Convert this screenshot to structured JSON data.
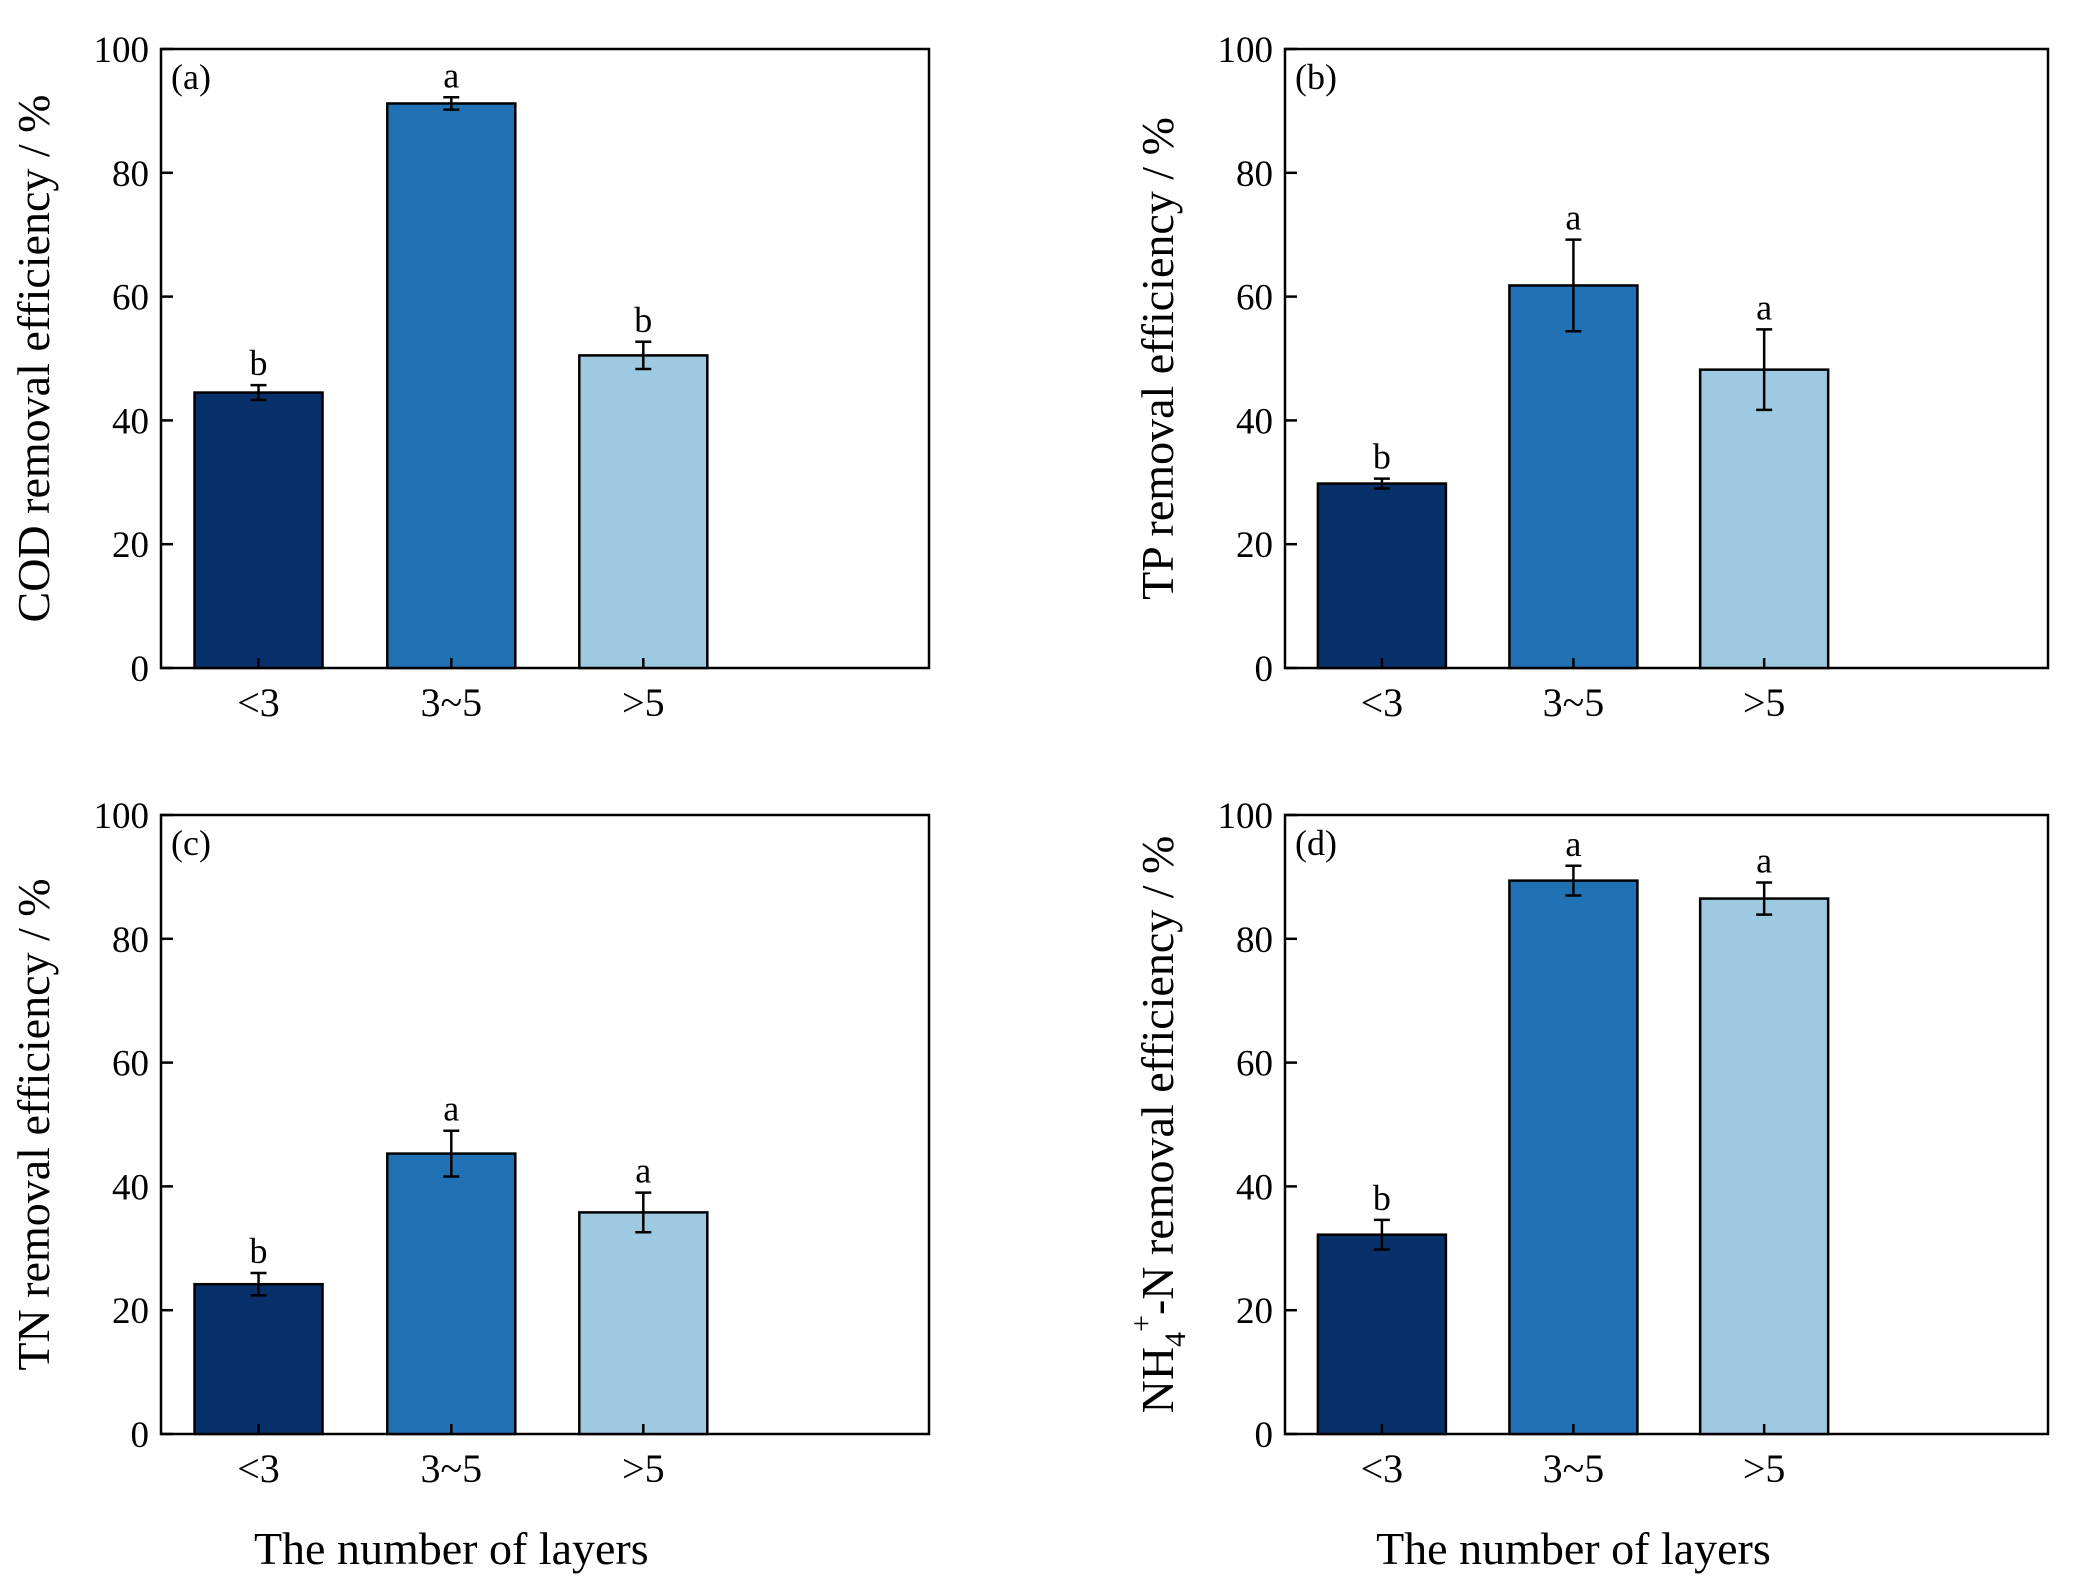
{
  "chart_data": [
    {
      "type": "bar",
      "panel_label": "(a)",
      "categories": [
        "<3",
        "3~5",
        ">5"
      ],
      "values": [
        44.5,
        91.2,
        50.5
      ],
      "errors": [
        1.2,
        1.0,
        2.2
      ],
      "significance": [
        "b",
        "a",
        "b"
      ],
      "ylabel": "COD removal efficiency / %",
      "xlabel": "",
      "ylim": [
        0,
        100
      ],
      "yticks": [
        "0",
        "20",
        "40",
        "60",
        "80",
        "100"
      ],
      "colors": [
        "#08306b",
        "#2171b5",
        "#9ecae1"
      ]
    },
    {
      "type": "bar",
      "panel_label": "(b)",
      "categories": [
        "<3",
        "3~5",
        ">5"
      ],
      "values": [
        29.8,
        61.8,
        48.2
      ],
      "errors": [
        0.8,
        7.4,
        6.5
      ],
      "significance": [
        "b",
        "a",
        "a"
      ],
      "ylabel": "TP removal efficiency / %",
      "xlabel": "",
      "ylim": [
        0,
        100
      ],
      "yticks": [
        "0",
        "20",
        "40",
        "60",
        "80",
        "100"
      ],
      "colors": [
        "#08306b",
        "#2171b5",
        "#9ecae1"
      ]
    },
    {
      "type": "bar",
      "panel_label": "(c)",
      "categories": [
        "<3",
        "3~5",
        ">5"
      ],
      "values": [
        24.2,
        45.3,
        35.8
      ],
      "errors": [
        1.8,
        3.7,
        3.2
      ],
      "significance": [
        "b",
        "a",
        "a"
      ],
      "ylabel": "TN removal efficiency / %",
      "xlabel": "The number of layers",
      "ylim": [
        0,
        100
      ],
      "yticks": [
        "0",
        "20",
        "40",
        "60",
        "80",
        "100"
      ],
      "colors": [
        "#08306b",
        "#2171b5",
        "#9ecae1"
      ]
    },
    {
      "type": "bar",
      "panel_label": "(d)",
      "categories": [
        "<3",
        "3~5",
        ">5"
      ],
      "values": [
        32.2,
        89.4,
        86.5
      ],
      "errors": [
        2.4,
        2.4,
        2.6
      ],
      "significance": [
        "b",
        "a",
        "a"
      ],
      "ylabel": "NH4+-N removal efficiency / %",
      "ylabel_parts": {
        "pre": "NH",
        "sub": "4",
        "sup": "+",
        "post": "-N removal efficiency / %"
      },
      "xlabel": "The number of layers",
      "ylim": [
        0,
        100
      ],
      "yticks": [
        "0",
        "20",
        "40",
        "60",
        "80",
        "100"
      ],
      "colors": [
        "#08306b",
        "#2171b5",
        "#9ecae1"
      ]
    }
  ]
}
